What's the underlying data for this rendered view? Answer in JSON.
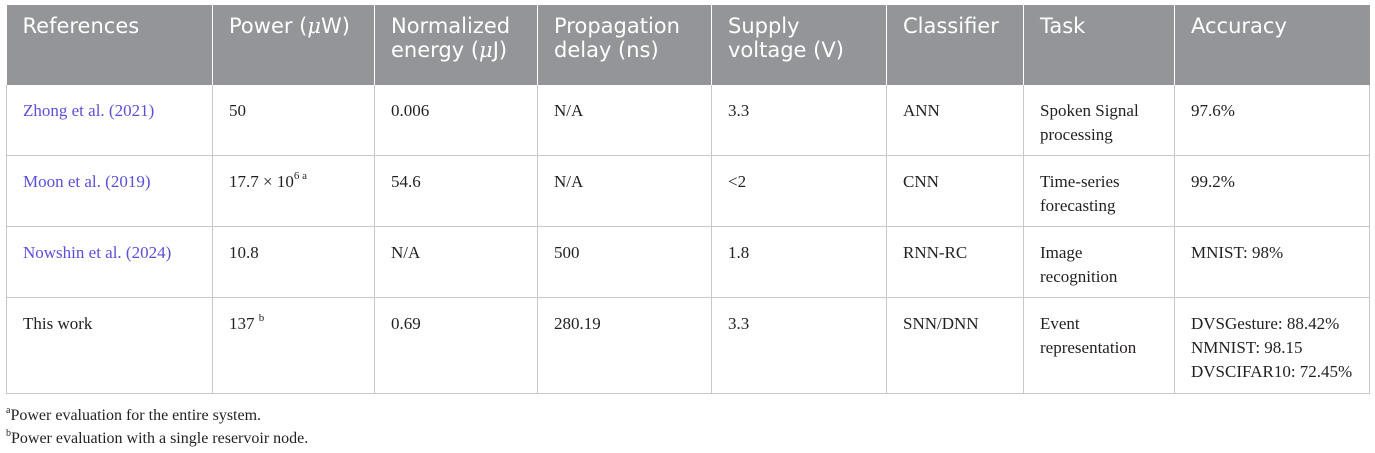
{
  "table": {
    "headers": {
      "references": "References",
      "power_prefix": "Power (",
      "power_mu": "μ",
      "power_suffix": "W)",
      "energy_prefix": "Normalized energy (",
      "energy_mu": "μ",
      "energy_suffix": "J)",
      "delay": "Propagation delay (ns)",
      "voltage": "Supply voltage (V)",
      "classifier": "Classifier",
      "task": "Task",
      "accuracy": "Accuracy"
    },
    "rows": [
      {
        "reference": "Zhong et al. (2021)",
        "power": "50",
        "energy": "0.006",
        "delay": "N/A",
        "voltage": "3.3",
        "classifier": "ANN",
        "task": "Spoken Signal processing",
        "accuracy": [
          "97.6%"
        ]
      },
      {
        "reference": "Moon et al. (2019)",
        "power": "17.7 × 10",
        "power_exp": "6",
        "power_note": "a",
        "energy": "54.6",
        "delay": "N/A",
        "voltage": "<2",
        "classifier": "CNN",
        "task": "Time-series forecasting",
        "accuracy": [
          "99.2%"
        ]
      },
      {
        "reference": "Nowshin et al. (2024)",
        "power": "10.8",
        "energy": "N/A",
        "delay": "500",
        "voltage": "1.8",
        "classifier": "RNN-RC",
        "task": "Image recognition",
        "accuracy": [
          "MNIST: 98%"
        ]
      },
      {
        "reference": "This work",
        "power": "137",
        "power_note": "b",
        "energy": "0.69",
        "delay": "280.19",
        "voltage": "3.3",
        "classifier": "SNN/DNN",
        "task": "Event representation",
        "accuracy": [
          "DVSGesture: 88.42%",
          "NMNIST: 98.15",
          "DVSCIFAR10: 72.45%"
        ]
      }
    ]
  },
  "footnotes": [
    {
      "mark": "a",
      "text": "Power evaluation for the entire system."
    },
    {
      "mark": "b",
      "text": "Power evaluation with a single reservoir node."
    }
  ],
  "colors": {
    "header_bg": "#939598",
    "header_text": "#ffffff",
    "link_text": "#5b4fd6",
    "body_text": "#231f20",
    "grid_line": "#c8c8c8"
  }
}
